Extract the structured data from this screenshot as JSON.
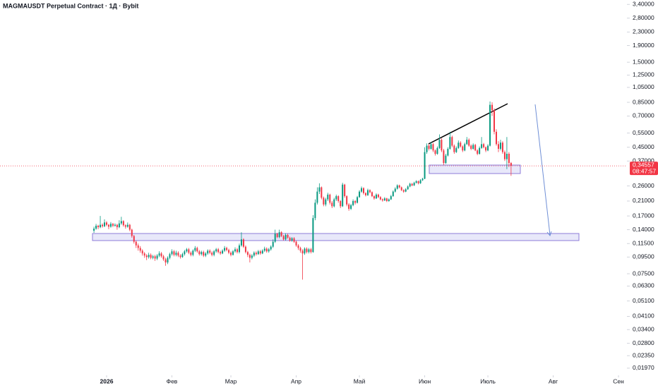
{
  "chart_data": {
    "type": "candlestick",
    "title": "MAGMAUSDT Perpetual Contract · 1Д · Bybit",
    "log_y": true,
    "grid": false,
    "up_color": "#089981",
    "down_color": "#f23645",
    "xlim": [
      -44.6,
      253
    ],
    "ylim": [
      0.0178,
      3.62
    ],
    "xticks": [
      {
        "value": 6,
        "label": "2026"
      },
      {
        "value": 37,
        "label": "Фев"
      },
      {
        "value": 65,
        "label": "Мар"
      },
      {
        "value": 96,
        "label": "Апр"
      },
      {
        "value": 126,
        "label": "Май"
      },
      {
        "value": 157,
        "label": "Июн"
      },
      {
        "value": 187,
        "label": "Июль"
      },
      {
        "value": 218,
        "label": "Авг"
      },
      {
        "value": 249,
        "label": "Сен"
      }
    ],
    "yticks": [
      {
        "value": 3.4,
        "label": "3,40000"
      },
      {
        "value": 2.8,
        "label": "2,80000"
      },
      {
        "value": 2.3,
        "label": "2,30000"
      },
      {
        "value": 1.9,
        "label": "1,90000"
      },
      {
        "value": 1.5,
        "label": "1,50000"
      },
      {
        "value": 1.25,
        "label": "1,25000"
      },
      {
        "value": 1.05,
        "label": "1,05000"
      },
      {
        "value": 0.85,
        "label": "0,85000"
      },
      {
        "value": 0.7,
        "label": "0,70000"
      },
      {
        "value": 0.55,
        "label": "0,55000"
      },
      {
        "value": 0.45,
        "label": "0,45000"
      },
      {
        "value": 0.37,
        "label": "0,37000"
      },
      {
        "value": 0.26,
        "label": "0,26000"
      },
      {
        "value": 0.21,
        "label": "0,21000"
      },
      {
        "value": 0.17,
        "label": "0,17000"
      },
      {
        "value": 0.14,
        "label": "0,14000"
      },
      {
        "value": 0.115,
        "label": "0,11500"
      },
      {
        "value": 0.095,
        "label": "0,09500"
      },
      {
        "value": 0.075,
        "label": "0,07500"
      },
      {
        "value": 0.063,
        "label": "0,06300"
      },
      {
        "value": 0.051,
        "label": "0,05100"
      },
      {
        "value": 0.041,
        "label": "0,04100"
      },
      {
        "value": 0.034,
        "label": "0,03400"
      },
      {
        "value": 0.028,
        "label": "0,02800"
      },
      {
        "value": 0.0235,
        "label": "0,02350"
      },
      {
        "value": 0.0197,
        "label": "0,01970"
      }
    ],
    "last_price": {
      "value": 0.34557,
      "label": "0,34557"
    },
    "countdown": "08:47:57",
    "candles": [
      [
        0.138,
        0.146,
        0.134,
        0.142
      ],
      [
        0.142,
        0.152,
        0.14,
        0.148
      ],
      [
        0.148,
        0.15,
        0.141,
        0.145
      ],
      [
        0.145,
        0.17,
        0.143,
        0.15
      ],
      [
        0.15,
        0.153,
        0.144,
        0.147
      ],
      [
        0.147,
        0.162,
        0.145,
        0.155
      ],
      [
        0.155,
        0.158,
        0.147,
        0.15
      ],
      [
        0.15,
        0.152,
        0.141,
        0.146
      ],
      [
        0.146,
        0.156,
        0.144,
        0.152
      ],
      [
        0.152,
        0.154,
        0.145,
        0.148
      ],
      [
        0.148,
        0.153,
        0.146,
        0.15
      ],
      [
        0.15,
        0.152,
        0.14,
        0.145
      ],
      [
        0.145,
        0.16,
        0.143,
        0.153
      ],
      [
        0.153,
        0.168,
        0.15,
        0.158
      ],
      [
        0.158,
        0.16,
        0.146,
        0.149
      ],
      [
        0.149,
        0.151,
        0.142,
        0.146
      ],
      [
        0.146,
        0.155,
        0.144,
        0.15
      ],
      [
        0.15,
        0.152,
        0.137,
        0.14
      ],
      [
        0.14,
        0.142,
        0.125,
        0.128
      ],
      [
        0.128,
        0.13,
        0.115,
        0.118
      ],
      [
        0.118,
        0.12,
        0.108,
        0.112
      ],
      [
        0.112,
        0.115,
        0.104,
        0.108
      ],
      [
        0.108,
        0.111,
        0.101,
        0.104
      ],
      [
        0.104,
        0.106,
        0.097,
        0.1
      ],
      [
        0.1,
        0.102,
        0.094,
        0.097
      ],
      [
        0.097,
        0.099,
        0.091,
        0.095
      ],
      [
        0.095,
        0.101,
        0.093,
        0.098
      ],
      [
        0.098,
        0.1,
        0.092,
        0.094
      ],
      [
        0.094,
        0.098,
        0.092,
        0.096
      ],
      [
        0.096,
        0.098,
        0.09,
        0.093
      ],
      [
        0.093,
        0.099,
        0.091,
        0.097
      ],
      [
        0.097,
        0.103,
        0.095,
        0.1
      ],
      [
        0.1,
        0.102,
        0.094,
        0.096
      ],
      [
        0.096,
        0.098,
        0.09,
        0.092
      ],
      [
        0.092,
        0.094,
        0.084,
        0.088
      ],
      [
        0.088,
        0.096,
        0.086,
        0.094
      ],
      [
        0.094,
        0.101,
        0.092,
        0.099
      ],
      [
        0.099,
        0.106,
        0.097,
        0.103
      ],
      [
        0.103,
        0.105,
        0.096,
        0.098
      ],
      [
        0.098,
        0.104,
        0.096,
        0.101
      ],
      [
        0.101,
        0.103,
        0.095,
        0.097
      ],
      [
        0.097,
        0.099,
        0.093,
        0.095
      ],
      [
        0.095,
        0.101,
        0.094,
        0.099
      ],
      [
        0.099,
        0.105,
        0.097,
        0.103
      ],
      [
        0.103,
        0.108,
        0.101,
        0.106
      ],
      [
        0.106,
        0.108,
        0.099,
        0.101
      ],
      [
        0.101,
        0.103,
        0.096,
        0.098
      ],
      [
        0.098,
        0.106,
        0.096,
        0.104
      ],
      [
        0.104,
        0.111,
        0.102,
        0.108
      ],
      [
        0.108,
        0.11,
        0.101,
        0.103
      ],
      [
        0.103,
        0.105,
        0.097,
        0.099
      ],
      [
        0.099,
        0.104,
        0.097,
        0.102
      ],
      [
        0.102,
        0.104,
        0.095,
        0.097
      ],
      [
        0.097,
        0.102,
        0.095,
        0.1
      ],
      [
        0.1,
        0.106,
        0.098,
        0.104
      ],
      [
        0.104,
        0.106,
        0.099,
        0.101
      ],
      [
        0.101,
        0.103,
        0.096,
        0.098
      ],
      [
        0.098,
        0.105,
        0.096,
        0.103
      ],
      [
        0.103,
        0.108,
        0.101,
        0.106
      ],
      [
        0.106,
        0.108,
        0.1,
        0.102
      ],
      [
        0.102,
        0.104,
        0.098,
        0.1
      ],
      [
        0.1,
        0.106,
        0.099,
        0.104
      ],
      [
        0.104,
        0.111,
        0.102,
        0.108
      ],
      [
        0.108,
        0.11,
        0.103,
        0.105
      ],
      [
        0.105,
        0.107,
        0.099,
        0.101
      ],
      [
        0.101,
        0.103,
        0.096,
        0.098
      ],
      [
        0.098,
        0.105,
        0.097,
        0.103
      ],
      [
        0.103,
        0.109,
        0.101,
        0.106
      ],
      [
        0.106,
        0.108,
        0.1,
        0.102
      ],
      [
        0.102,
        0.115,
        0.1,
        0.112
      ],
      [
        0.112,
        0.135,
        0.11,
        0.122
      ],
      [
        0.122,
        0.124,
        0.108,
        0.11
      ],
      [
        0.11,
        0.112,
        0.1,
        0.102
      ],
      [
        0.102,
        0.104,
        0.095,
        0.098
      ],
      [
        0.098,
        0.1,
        0.088,
        0.094
      ],
      [
        0.094,
        0.099,
        0.092,
        0.097
      ],
      [
        0.097,
        0.103,
        0.095,
        0.101
      ],
      [
        0.101,
        0.103,
        0.097,
        0.099
      ],
      [
        0.099,
        0.105,
        0.098,
        0.103
      ],
      [
        0.103,
        0.105,
        0.098,
        0.1
      ],
      [
        0.1,
        0.106,
        0.099,
        0.104
      ],
      [
        0.104,
        0.11,
        0.102,
        0.107
      ],
      [
        0.107,
        0.109,
        0.101,
        0.103
      ],
      [
        0.103,
        0.108,
        0.101,
        0.106
      ],
      [
        0.106,
        0.112,
        0.104,
        0.11
      ],
      [
        0.11,
        0.122,
        0.108,
        0.118
      ],
      [
        0.118,
        0.14,
        0.116,
        0.132
      ],
      [
        0.132,
        0.134,
        0.124,
        0.126
      ],
      [
        0.126,
        0.14,
        0.124,
        0.135
      ],
      [
        0.135,
        0.137,
        0.126,
        0.128
      ],
      [
        0.128,
        0.13,
        0.12,
        0.122
      ],
      [
        0.122,
        0.133,
        0.12,
        0.13
      ],
      [
        0.13,
        0.132,
        0.123,
        0.125
      ],
      [
        0.125,
        0.127,
        0.118,
        0.12
      ],
      [
        0.12,
        0.126,
        0.118,
        0.124
      ],
      [
        0.124,
        0.126,
        0.116,
        0.118
      ],
      [
        0.118,
        0.12,
        0.11,
        0.112
      ],
      [
        0.112,
        0.114,
        0.105,
        0.108
      ],
      [
        0.108,
        0.11,
        0.101,
        0.104
      ],
      [
        0.104,
        0.106,
        0.069,
        0.1
      ],
      [
        0.1,
        0.109,
        0.098,
        0.107
      ],
      [
        0.107,
        0.109,
        0.1,
        0.102
      ],
      [
        0.102,
        0.108,
        0.1,
        0.106
      ],
      [
        0.106,
        0.108,
        0.1,
        0.102
      ],
      [
        0.102,
        0.172,
        0.101,
        0.165
      ],
      [
        0.165,
        0.215,
        0.16,
        0.205
      ],
      [
        0.205,
        0.255,
        0.2,
        0.24
      ],
      [
        0.24,
        0.27,
        0.232,
        0.255
      ],
      [
        0.255,
        0.258,
        0.215,
        0.22
      ],
      [
        0.22,
        0.224,
        0.195,
        0.2
      ],
      [
        0.2,
        0.22,
        0.195,
        0.215
      ],
      [
        0.215,
        0.236,
        0.21,
        0.23
      ],
      [
        0.23,
        0.233,
        0.2,
        0.205
      ],
      [
        0.205,
        0.21,
        0.19,
        0.195
      ],
      [
        0.195,
        0.22,
        0.192,
        0.215
      ],
      [
        0.215,
        0.23,
        0.21,
        0.225
      ],
      [
        0.225,
        0.228,
        0.205,
        0.21
      ],
      [
        0.21,
        0.213,
        0.19,
        0.195
      ],
      [
        0.195,
        0.272,
        0.193,
        0.265
      ],
      [
        0.265,
        0.268,
        0.22,
        0.225
      ],
      [
        0.225,
        0.228,
        0.195,
        0.2
      ],
      [
        0.2,
        0.204,
        0.183,
        0.188
      ],
      [
        0.188,
        0.202,
        0.185,
        0.198
      ],
      [
        0.198,
        0.215,
        0.195,
        0.21
      ],
      [
        0.21,
        0.213,
        0.2,
        0.205
      ],
      [
        0.205,
        0.226,
        0.203,
        0.222
      ],
      [
        0.222,
        0.245,
        0.22,
        0.24
      ],
      [
        0.24,
        0.258,
        0.236,
        0.252
      ],
      [
        0.252,
        0.255,
        0.23,
        0.235
      ],
      [
        0.235,
        0.238,
        0.224,
        0.228
      ],
      [
        0.228,
        0.25,
        0.226,
        0.245
      ],
      [
        0.245,
        0.248,
        0.234,
        0.238
      ],
      [
        0.238,
        0.241,
        0.222,
        0.225
      ],
      [
        0.225,
        0.228,
        0.214,
        0.218
      ],
      [
        0.218,
        0.234,
        0.216,
        0.23
      ],
      [
        0.23,
        0.233,
        0.219,
        0.222
      ],
      [
        0.222,
        0.225,
        0.212,
        0.215
      ],
      [
        0.215,
        0.218,
        0.208,
        0.212
      ],
      [
        0.212,
        0.222,
        0.21,
        0.218
      ],
      [
        0.218,
        0.22,
        0.207,
        0.21
      ],
      [
        0.21,
        0.218,
        0.208,
        0.215
      ],
      [
        0.215,
        0.229,
        0.213,
        0.225
      ],
      [
        0.225,
        0.244,
        0.223,
        0.24
      ],
      [
        0.24,
        0.255,
        0.237,
        0.25
      ],
      [
        0.25,
        0.266,
        0.247,
        0.262
      ],
      [
        0.262,
        0.265,
        0.251,
        0.255
      ],
      [
        0.255,
        0.258,
        0.242,
        0.245
      ],
      [
        0.245,
        0.248,
        0.236,
        0.24
      ],
      [
        0.24,
        0.252,
        0.238,
        0.248
      ],
      [
        0.248,
        0.262,
        0.246,
        0.258
      ],
      [
        0.258,
        0.272,
        0.255,
        0.268
      ],
      [
        0.268,
        0.271,
        0.259,
        0.262
      ],
      [
        0.262,
        0.276,
        0.26,
        0.272
      ],
      [
        0.272,
        0.282,
        0.269,
        0.278
      ],
      [
        0.278,
        0.281,
        0.266,
        0.27
      ],
      [
        0.27,
        0.286,
        0.268,
        0.282
      ],
      [
        0.282,
        0.292,
        0.279,
        0.288
      ],
      [
        0.288,
        0.45,
        0.286,
        0.42
      ],
      [
        0.42,
        0.475,
        0.41,
        0.46
      ],
      [
        0.46,
        0.47,
        0.43,
        0.44
      ],
      [
        0.44,
        0.485,
        0.435,
        0.47
      ],
      [
        0.47,
        0.478,
        0.42,
        0.43
      ],
      [
        0.43,
        0.436,
        0.4,
        0.41
      ],
      [
        0.41,
        0.455,
        0.405,
        0.445
      ],
      [
        0.445,
        0.54,
        0.44,
        0.5
      ],
      [
        0.5,
        0.51,
        0.42,
        0.43
      ],
      [
        0.43,
        0.44,
        0.35,
        0.36
      ],
      [
        0.36,
        0.41,
        0.355,
        0.4
      ],
      [
        0.4,
        0.45,
        0.395,
        0.44
      ],
      [
        0.44,
        0.56,
        0.435,
        0.52
      ],
      [
        0.52,
        0.53,
        0.45,
        0.46
      ],
      [
        0.46,
        0.468,
        0.41,
        0.42
      ],
      [
        0.42,
        0.455,
        0.415,
        0.445
      ],
      [
        0.445,
        0.495,
        0.44,
        0.48
      ],
      [
        0.48,
        0.49,
        0.448,
        0.455
      ],
      [
        0.455,
        0.462,
        0.42,
        0.43
      ],
      [
        0.43,
        0.48,
        0.425,
        0.47
      ],
      [
        0.47,
        0.52,
        0.465,
        0.5
      ],
      [
        0.5,
        0.51,
        0.452,
        0.46
      ],
      [
        0.46,
        0.468,
        0.432,
        0.44
      ],
      [
        0.44,
        0.475,
        0.435,
        0.465
      ],
      [
        0.465,
        0.472,
        0.425,
        0.43
      ],
      [
        0.43,
        0.437,
        0.402,
        0.41
      ],
      [
        0.41,
        0.455,
        0.405,
        0.445
      ],
      [
        0.445,
        0.52,
        0.44,
        0.47
      ],
      [
        0.47,
        0.478,
        0.443,
        0.45
      ],
      [
        0.45,
        0.455,
        0.42,
        0.43
      ],
      [
        0.43,
        0.47,
        0.425,
        0.46
      ],
      [
        0.46,
        0.86,
        0.455,
        0.82
      ],
      [
        0.82,
        0.85,
        0.7,
        0.76
      ],
      [
        0.76,
        0.78,
        0.54,
        0.56
      ],
      [
        0.56,
        0.58,
        0.46,
        0.47
      ],
      [
        0.47,
        0.49,
        0.42,
        0.44
      ],
      [
        0.44,
        0.5,
        0.43,
        0.48
      ],
      [
        0.48,
        0.49,
        0.41,
        0.42
      ],
      [
        0.42,
        0.43,
        0.37,
        0.38
      ],
      [
        0.38,
        0.52,
        0.33,
        0.41
      ],
      [
        0.41,
        0.42,
        0.34,
        0.36
      ],
      [
        0.36,
        0.365,
        0.3,
        0.34557
      ]
    ]
  }
}
